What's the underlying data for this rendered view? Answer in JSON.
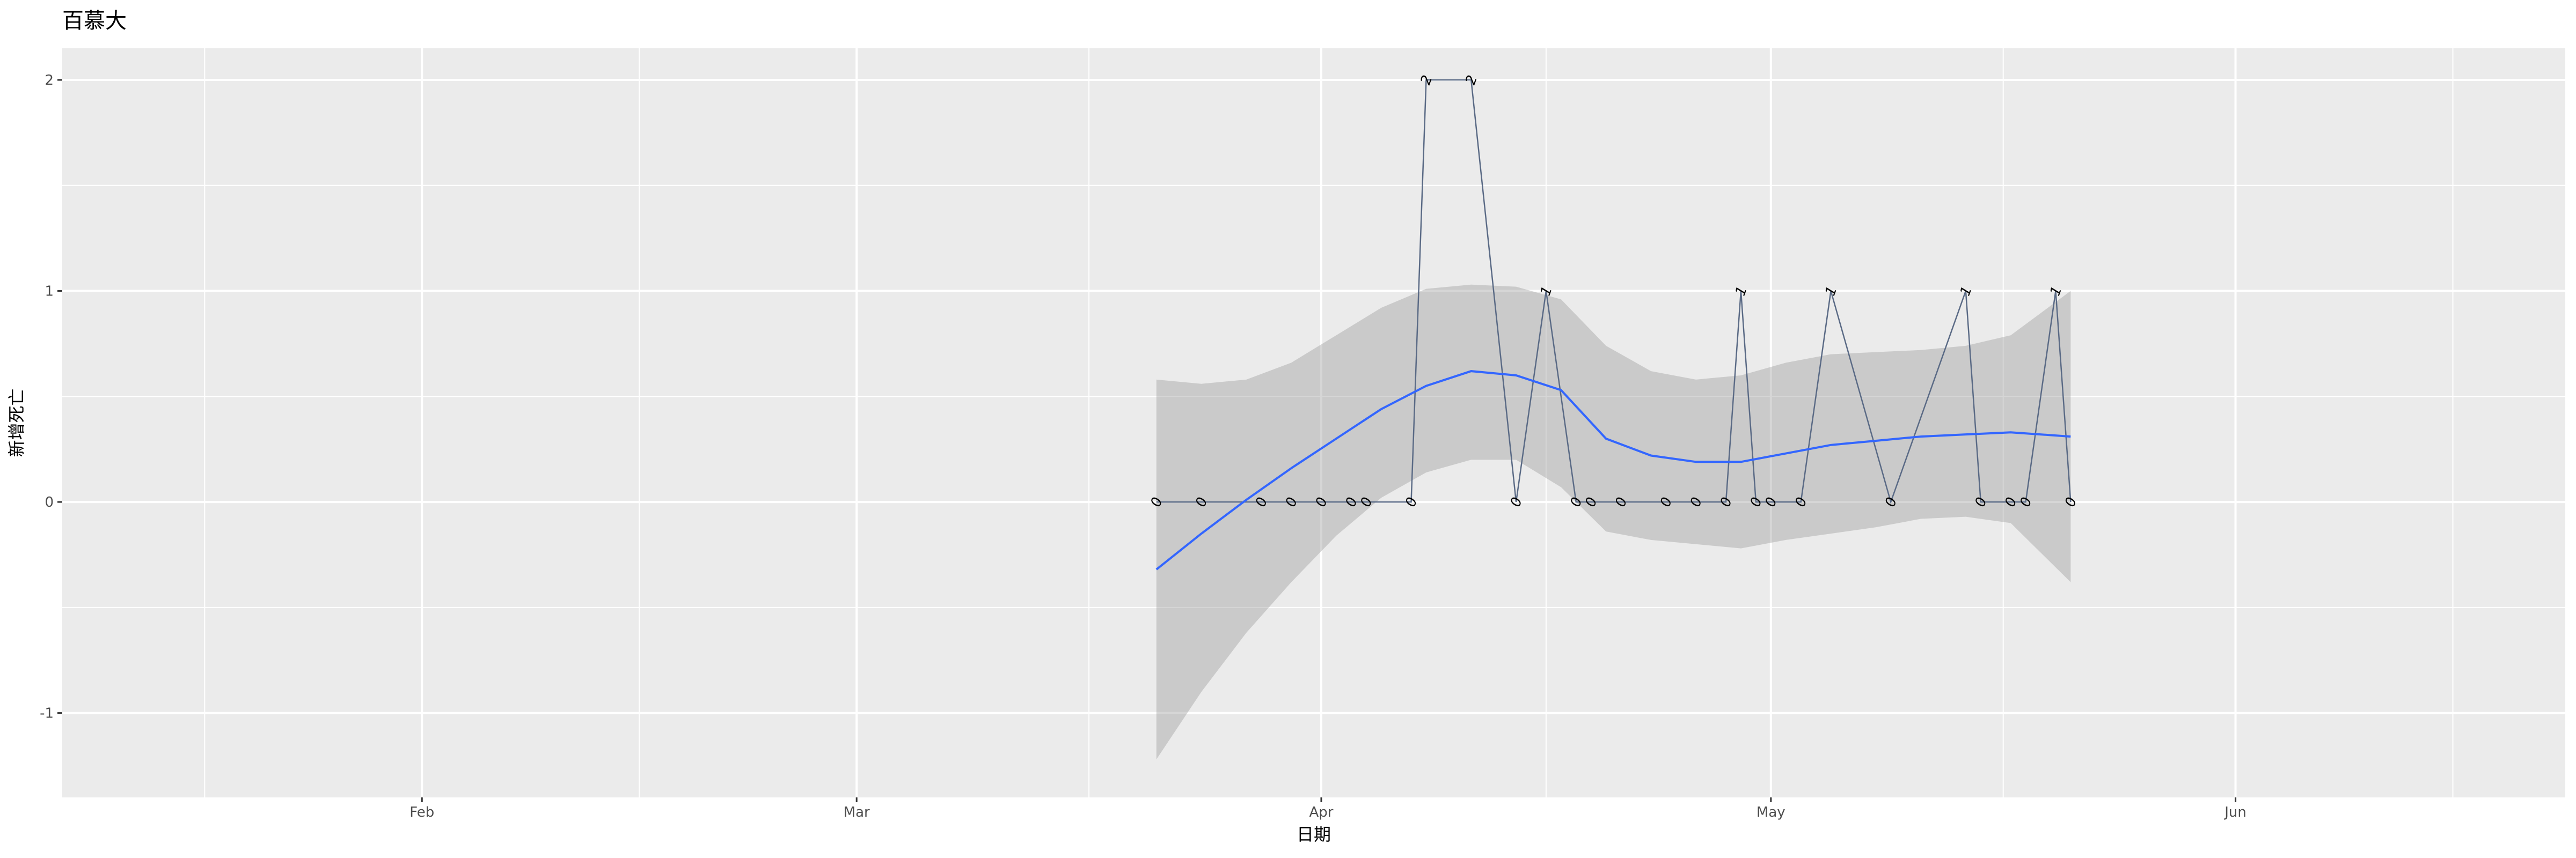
{
  "chart_data": {
    "type": "line",
    "title": "百慕大",
    "xlabel": "日期",
    "ylabel": "新增死亡",
    "x_range": [
      "2020-01-08",
      "2020-06-23"
    ],
    "ylim": [
      -1.4,
      2.15
    ],
    "x_ticks": [
      {
        "date": "2020-02-01",
        "label": "Feb"
      },
      {
        "date": "2020-03-01",
        "label": "Mar"
      },
      {
        "date": "2020-04-01",
        "label": "Apr"
      },
      {
        "date": "2020-05-01",
        "label": "May"
      },
      {
        "date": "2020-06-01",
        "label": "Jun"
      }
    ],
    "y_ticks": [
      -1,
      0,
      1,
      2
    ],
    "grid": true,
    "series": [
      {
        "kind": "line-with-labels",
        "color": "#5a6a85",
        "points": [
          {
            "x": "2020-03-21",
            "y": 0
          },
          {
            "x": "2020-03-24",
            "y": 0
          },
          {
            "x": "2020-03-28",
            "y": 0
          },
          {
            "x": "2020-03-30",
            "y": 0
          },
          {
            "x": "2020-04-01",
            "y": 0
          },
          {
            "x": "2020-04-03",
            "y": 0
          },
          {
            "x": "2020-04-04",
            "y": 0
          },
          {
            "x": "2020-04-07",
            "y": 0
          },
          {
            "x": "2020-04-08",
            "y": 2
          },
          {
            "x": "2020-04-11",
            "y": 2
          },
          {
            "x": "2020-04-14",
            "y": 0
          },
          {
            "x": "2020-04-16",
            "y": 1
          },
          {
            "x": "2020-04-18",
            "y": 0
          },
          {
            "x": "2020-04-19",
            "y": 0
          },
          {
            "x": "2020-04-21",
            "y": 0
          },
          {
            "x": "2020-04-24",
            "y": 0
          },
          {
            "x": "2020-04-26",
            "y": 0
          },
          {
            "x": "2020-04-28",
            "y": 0
          },
          {
            "x": "2020-04-29",
            "y": 1
          },
          {
            "x": "2020-04-30",
            "y": 0
          },
          {
            "x": "2020-05-01",
            "y": 0
          },
          {
            "x": "2020-05-03",
            "y": 0
          },
          {
            "x": "2020-05-05",
            "y": 1
          },
          {
            "x": "2020-05-09",
            "y": 0
          },
          {
            "x": "2020-05-14",
            "y": 1
          },
          {
            "x": "2020-05-15",
            "y": 0
          },
          {
            "x": "2020-05-17",
            "y": 0
          },
          {
            "x": "2020-05-18",
            "y": 0
          },
          {
            "x": "2020-05-20",
            "y": 1
          },
          {
            "x": "2020-05-21",
            "y": 0
          }
        ]
      },
      {
        "kind": "smooth",
        "color": "#3366ff",
        "band_color": "#999999",
        "points": [
          {
            "x": "2020-03-21",
            "y": -0.32,
            "lo": -1.22,
            "hi": 0.58
          },
          {
            "x": "2020-03-24",
            "y": -0.15,
            "lo": -0.9,
            "hi": 0.56
          },
          {
            "x": "2020-03-27",
            "y": 0.01,
            "lo": -0.62,
            "hi": 0.58
          },
          {
            "x": "2020-03-30",
            "y": 0.16,
            "lo": -0.38,
            "hi": 0.66
          },
          {
            "x": "2020-04-02",
            "y": 0.3,
            "lo": -0.16,
            "hi": 0.79
          },
          {
            "x": "2020-04-05",
            "y": 0.44,
            "lo": 0.02,
            "hi": 0.92
          },
          {
            "x": "2020-04-08",
            "y": 0.55,
            "lo": 0.14,
            "hi": 1.01
          },
          {
            "x": "2020-04-11",
            "y": 0.62,
            "lo": 0.2,
            "hi": 1.03
          },
          {
            "x": "2020-04-14",
            "y": 0.6,
            "lo": 0.2,
            "hi": 1.02
          },
          {
            "x": "2020-04-17",
            "y": 0.53,
            "lo": 0.07,
            "hi": 0.96
          },
          {
            "x": "2020-04-20",
            "y": 0.3,
            "lo": -0.14,
            "hi": 0.74
          },
          {
            "x": "2020-04-23",
            "y": 0.22,
            "lo": -0.18,
            "hi": 0.62
          },
          {
            "x": "2020-04-26",
            "y": 0.19,
            "lo": -0.2,
            "hi": 0.58
          },
          {
            "x": "2020-04-29",
            "y": 0.19,
            "lo": -0.22,
            "hi": 0.6
          },
          {
            "x": "2020-05-02",
            "y": 0.23,
            "lo": -0.18,
            "hi": 0.66
          },
          {
            "x": "2020-05-05",
            "y": 0.27,
            "lo": -0.15,
            "hi": 0.7
          },
          {
            "x": "2020-05-08",
            "y": 0.29,
            "lo": -0.12,
            "hi": 0.71
          },
          {
            "x": "2020-05-11",
            "y": 0.31,
            "lo": -0.08,
            "hi": 0.72
          },
          {
            "x": "2020-05-14",
            "y": 0.32,
            "lo": -0.07,
            "hi": 0.74
          },
          {
            "x": "2020-05-17",
            "y": 0.33,
            "lo": -0.1,
            "hi": 0.79
          },
          {
            "x": "2020-05-21",
            "y": 0.31,
            "lo": -0.38,
            "hi": 1.0
          }
        ]
      }
    ]
  }
}
